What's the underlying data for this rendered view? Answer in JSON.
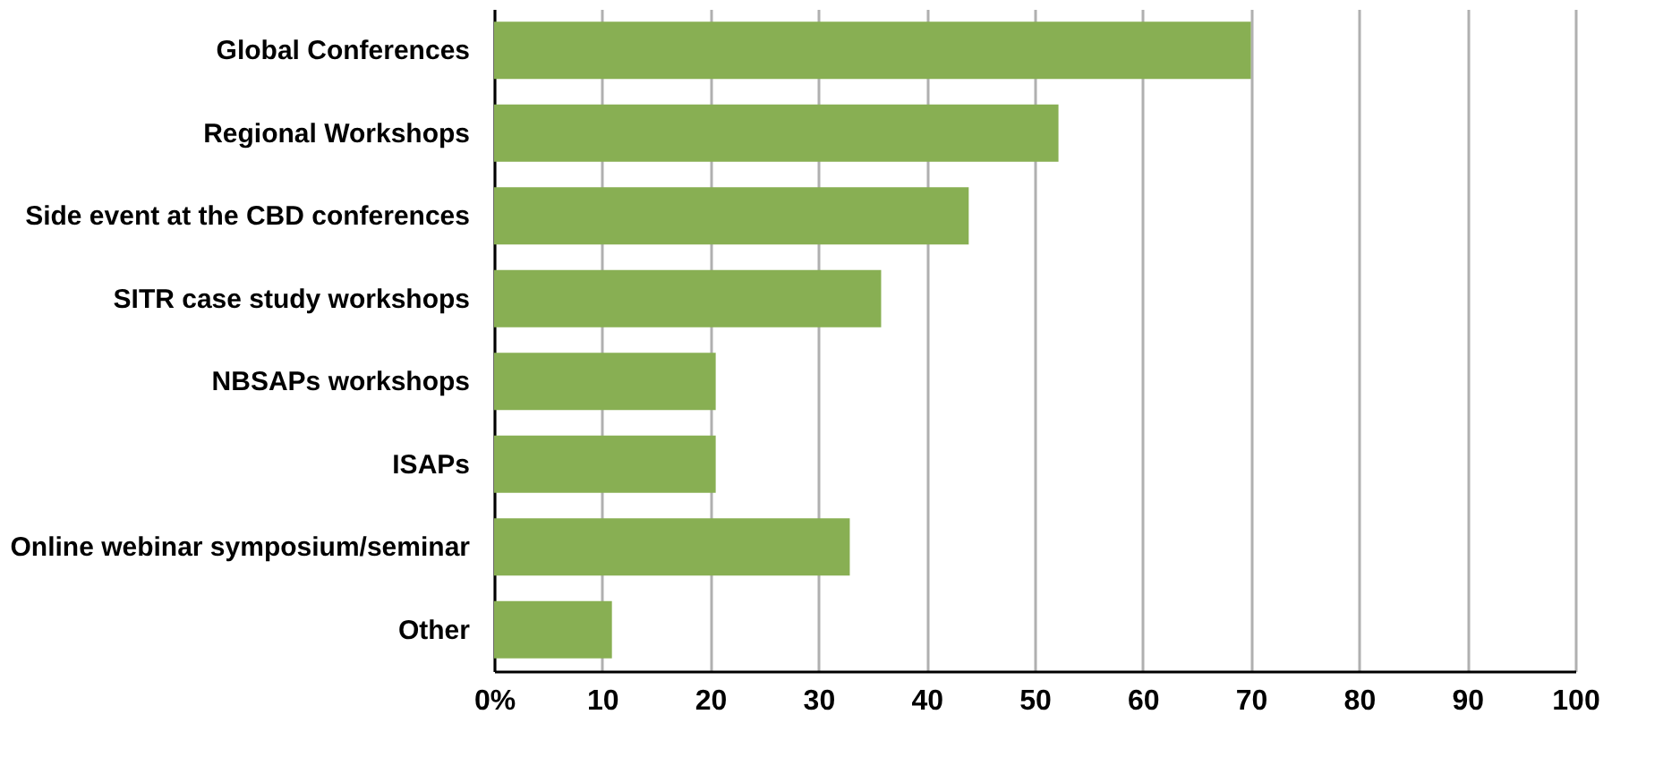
{
  "chart_data": {
    "type": "bar",
    "orientation": "horizontal",
    "categories": [
      "Global Conferences",
      "Regional Workshops",
      "Side event at the  CBD conferences",
      "SITR case study workshops",
      "NBSAPs workshops",
      "ISAPs",
      "Online webinar symposium/seminar",
      "Other"
    ],
    "values": [
      70,
      52.2,
      43.9,
      35.8,
      20.5,
      20.5,
      32.9,
      10.9
    ],
    "color": "#88af53",
    "xlim": [
      0,
      100
    ],
    "xticks": [
      {
        "value": 0,
        "label": "0%"
      },
      10,
      20,
      30,
      40,
      50,
      60,
      70,
      80,
      90,
      100
    ],
    "grid": "x"
  }
}
